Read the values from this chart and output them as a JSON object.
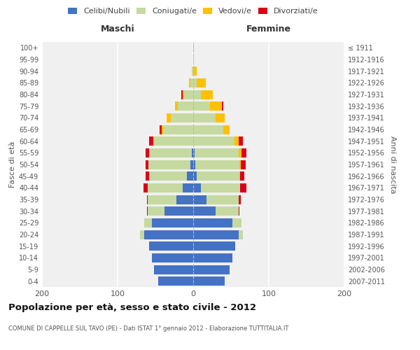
{
  "age_groups": [
    "0-4",
    "5-9",
    "10-14",
    "15-19",
    "20-24",
    "25-29",
    "30-34",
    "35-39",
    "40-44",
    "45-49",
    "50-54",
    "55-59",
    "60-64",
    "65-69",
    "70-74",
    "75-79",
    "80-84",
    "85-89",
    "90-94",
    "95-99",
    "100+"
  ],
  "birth_years": [
    "2007-2011",
    "2002-2006",
    "1997-2001",
    "1992-1996",
    "1987-1991",
    "1982-1986",
    "1977-1981",
    "1972-1976",
    "1967-1971",
    "1962-1966",
    "1957-1961",
    "1952-1956",
    "1947-1951",
    "1942-1946",
    "1937-1941",
    "1932-1936",
    "1927-1931",
    "1922-1926",
    "1917-1921",
    "1912-1916",
    "≤ 1911"
  ],
  "male_celibi": [
    46,
    52,
    55,
    58,
    65,
    55,
    38,
    22,
    14,
    8,
    4,
    2,
    0,
    0,
    0,
    0,
    0,
    0,
    0,
    0,
    0
  ],
  "male_coniugati": [
    0,
    0,
    0,
    0,
    5,
    10,
    22,
    38,
    46,
    50,
    55,
    55,
    52,
    40,
    30,
    20,
    12,
    4,
    2,
    0,
    0
  ],
  "male_vedovi": [
    0,
    0,
    0,
    0,
    0,
    0,
    0,
    0,
    0,
    0,
    0,
    1,
    1,
    2,
    5,
    4,
    2,
    2,
    0,
    0,
    0
  ],
  "male_divorziati": [
    0,
    0,
    0,
    0,
    0,
    0,
    1,
    1,
    6,
    5,
    4,
    5,
    5,
    2,
    0,
    0,
    2,
    0,
    0,
    0,
    0
  ],
  "female_celibi": [
    42,
    48,
    52,
    56,
    60,
    52,
    30,
    18,
    10,
    5,
    3,
    2,
    0,
    0,
    0,
    0,
    0,
    0,
    0,
    0,
    0
  ],
  "female_coniugati": [
    0,
    0,
    0,
    0,
    6,
    12,
    30,
    42,
    52,
    56,
    58,
    58,
    55,
    40,
    30,
    22,
    10,
    5,
    1,
    0,
    0
  ],
  "female_vedovi": [
    0,
    0,
    0,
    0,
    0,
    0,
    0,
    0,
    0,
    1,
    2,
    4,
    5,
    8,
    12,
    16,
    16,
    12,
    4,
    1,
    1
  ],
  "female_divorziati": [
    0,
    0,
    0,
    0,
    0,
    0,
    1,
    3,
    8,
    6,
    6,
    6,
    6,
    0,
    0,
    2,
    0,
    0,
    0,
    0,
    0
  ],
  "color_celibi": "#4472c4",
  "color_coniugati": "#c5d9a0",
  "color_vedovi": "#ffc000",
  "color_divorziati": "#d9001b",
  "title": "Popolazione per età, sesso e stato civile - 2012",
  "subtitle": "COMUNE DI CAPPELLE SUL TAVO (PE) - Dati ISTAT 1° gennaio 2012 - Elaborazione TUTTITALIA.IT",
  "ylabel_left": "Fasce di età",
  "ylabel_right": "Anni di nascita",
  "xlabel_left": "Maschi",
  "xlabel_right": "Femmine",
  "xlim": 200,
  "bg_color": "#ffffff",
  "plot_bg": "#f0f0f0"
}
